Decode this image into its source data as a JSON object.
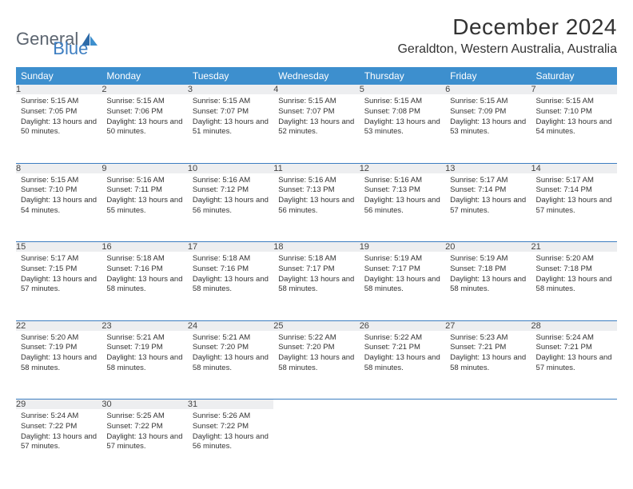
{
  "logo": {
    "text_a": "General",
    "text_b": "Blue"
  },
  "title": "December 2024",
  "subtitle": "Geraldton, Western Australia, Australia",
  "colors": {
    "header_bg": "#3d8fce",
    "header_fg": "#ffffff",
    "daynum_bg": "#edeef0",
    "rule": "#3d7ec1",
    "logo_gray": "#5c6570",
    "logo_blue": "#3d7ec1"
  },
  "dayHeaders": [
    "Sunday",
    "Monday",
    "Tuesday",
    "Wednesday",
    "Thursday",
    "Friday",
    "Saturday"
  ],
  "weeks": [
    [
      {
        "n": "1",
        "sr": "5:15 AM",
        "ss": "7:05 PM",
        "dl": "13 hours and 50 minutes."
      },
      {
        "n": "2",
        "sr": "5:15 AM",
        "ss": "7:06 PM",
        "dl": "13 hours and 50 minutes."
      },
      {
        "n": "3",
        "sr": "5:15 AM",
        "ss": "7:07 PM",
        "dl": "13 hours and 51 minutes."
      },
      {
        "n": "4",
        "sr": "5:15 AM",
        "ss": "7:07 PM",
        "dl": "13 hours and 52 minutes."
      },
      {
        "n": "5",
        "sr": "5:15 AM",
        "ss": "7:08 PM",
        "dl": "13 hours and 53 minutes."
      },
      {
        "n": "6",
        "sr": "5:15 AM",
        "ss": "7:09 PM",
        "dl": "13 hours and 53 minutes."
      },
      {
        "n": "7",
        "sr": "5:15 AM",
        "ss": "7:10 PM",
        "dl": "13 hours and 54 minutes."
      }
    ],
    [
      {
        "n": "8",
        "sr": "5:15 AM",
        "ss": "7:10 PM",
        "dl": "13 hours and 54 minutes."
      },
      {
        "n": "9",
        "sr": "5:16 AM",
        "ss": "7:11 PM",
        "dl": "13 hours and 55 minutes."
      },
      {
        "n": "10",
        "sr": "5:16 AM",
        "ss": "7:12 PM",
        "dl": "13 hours and 56 minutes."
      },
      {
        "n": "11",
        "sr": "5:16 AM",
        "ss": "7:13 PM",
        "dl": "13 hours and 56 minutes."
      },
      {
        "n": "12",
        "sr": "5:16 AM",
        "ss": "7:13 PM",
        "dl": "13 hours and 56 minutes."
      },
      {
        "n": "13",
        "sr": "5:17 AM",
        "ss": "7:14 PM",
        "dl": "13 hours and 57 minutes."
      },
      {
        "n": "14",
        "sr": "5:17 AM",
        "ss": "7:14 PM",
        "dl": "13 hours and 57 minutes."
      }
    ],
    [
      {
        "n": "15",
        "sr": "5:17 AM",
        "ss": "7:15 PM",
        "dl": "13 hours and 57 minutes."
      },
      {
        "n": "16",
        "sr": "5:18 AM",
        "ss": "7:16 PM",
        "dl": "13 hours and 58 minutes."
      },
      {
        "n": "17",
        "sr": "5:18 AM",
        "ss": "7:16 PM",
        "dl": "13 hours and 58 minutes."
      },
      {
        "n": "18",
        "sr": "5:18 AM",
        "ss": "7:17 PM",
        "dl": "13 hours and 58 minutes."
      },
      {
        "n": "19",
        "sr": "5:19 AM",
        "ss": "7:17 PM",
        "dl": "13 hours and 58 minutes."
      },
      {
        "n": "20",
        "sr": "5:19 AM",
        "ss": "7:18 PM",
        "dl": "13 hours and 58 minutes."
      },
      {
        "n": "21",
        "sr": "5:20 AM",
        "ss": "7:18 PM",
        "dl": "13 hours and 58 minutes."
      }
    ],
    [
      {
        "n": "22",
        "sr": "5:20 AM",
        "ss": "7:19 PM",
        "dl": "13 hours and 58 minutes."
      },
      {
        "n": "23",
        "sr": "5:21 AM",
        "ss": "7:19 PM",
        "dl": "13 hours and 58 minutes."
      },
      {
        "n": "24",
        "sr": "5:21 AM",
        "ss": "7:20 PM",
        "dl": "13 hours and 58 minutes."
      },
      {
        "n": "25",
        "sr": "5:22 AM",
        "ss": "7:20 PM",
        "dl": "13 hours and 58 minutes."
      },
      {
        "n": "26",
        "sr": "5:22 AM",
        "ss": "7:21 PM",
        "dl": "13 hours and 58 minutes."
      },
      {
        "n": "27",
        "sr": "5:23 AM",
        "ss": "7:21 PM",
        "dl": "13 hours and 58 minutes."
      },
      {
        "n": "28",
        "sr": "5:24 AM",
        "ss": "7:21 PM",
        "dl": "13 hours and 57 minutes."
      }
    ],
    [
      {
        "n": "29",
        "sr": "5:24 AM",
        "ss": "7:22 PM",
        "dl": "13 hours and 57 minutes."
      },
      {
        "n": "30",
        "sr": "5:25 AM",
        "ss": "7:22 PM",
        "dl": "13 hours and 57 minutes."
      },
      {
        "n": "31",
        "sr": "5:26 AM",
        "ss": "7:22 PM",
        "dl": "13 hours and 56 minutes."
      },
      null,
      null,
      null,
      null
    ]
  ],
  "labels": {
    "sunrise": "Sunrise:",
    "sunset": "Sunset:",
    "daylight": "Daylight:"
  }
}
